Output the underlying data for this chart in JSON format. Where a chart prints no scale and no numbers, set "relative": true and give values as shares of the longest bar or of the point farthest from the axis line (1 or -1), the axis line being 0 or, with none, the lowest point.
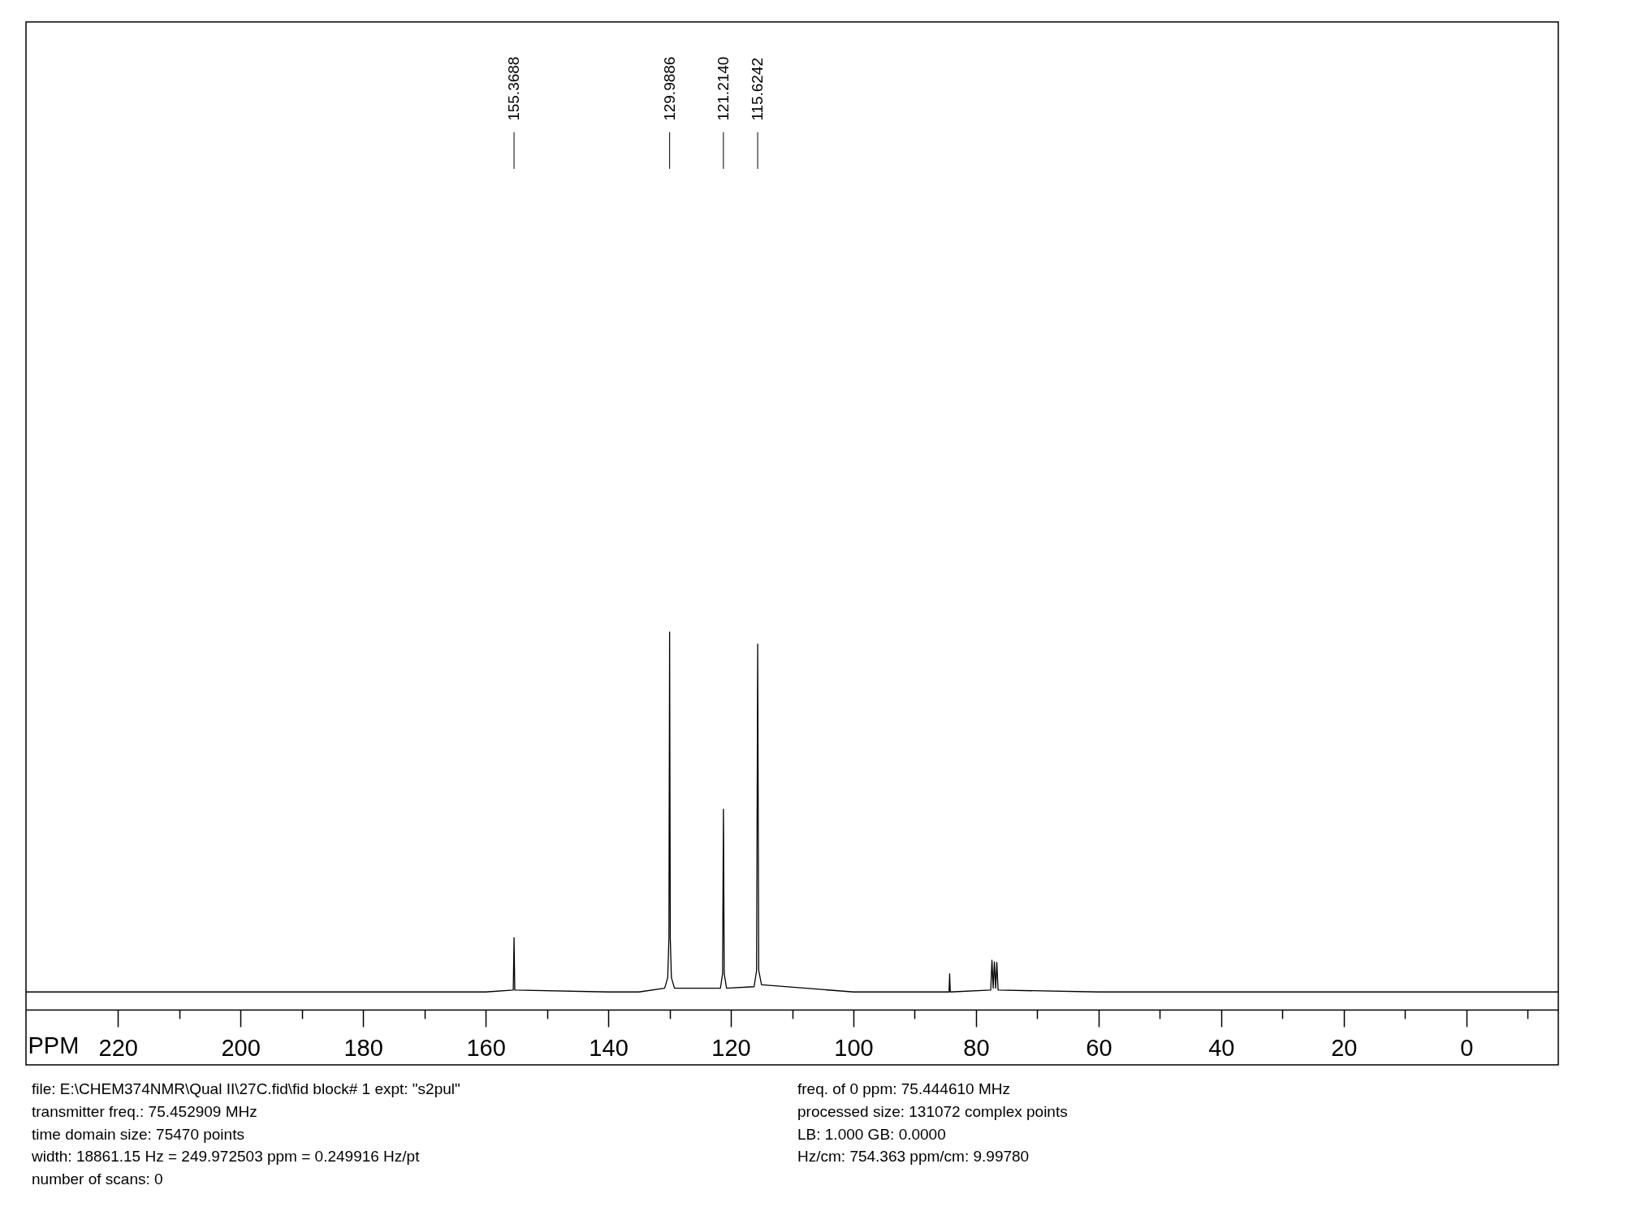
{
  "chart_data": {
    "type": "line",
    "relative": true,
    "xlabel": "PPM",
    "xlim": [
      235,
      -15
    ],
    "xticks": [
      220,
      {
        "value": 210,
        "label": null
      },
      200,
      {
        "value": 190,
        "label": null
      },
      180,
      {
        "value": 170,
        "label": null
      },
      160,
      {
        "value": 150,
        "label": null
      },
      140,
      {
        "value": 130,
        "label": null
      },
      120,
      {
        "value": 110,
        "label": null
      },
      100,
      {
        "value": 90,
        "label": null
      },
      80,
      {
        "value": 70,
        "label": null
      },
      60,
      {
        "value": 50,
        "label": null
      },
      40,
      {
        "value": 30,
        "label": null
      },
      20,
      {
        "value": 10,
        "label": null
      },
      0,
      {
        "value": -10,
        "label": null
      }
    ],
    "series": [
      {
        "color": "#000000",
        "x": [
          235,
          200,
          160,
          155.5,
          155.37,
          155.25,
          140,
          135,
          130.8,
          130.3,
          130.1,
          129.99,
          129.88,
          129.7,
          129.2,
          121.7,
          121.35,
          121.21,
          121.08,
          120.7,
          116.2,
          115.8,
          115.62,
          115.45,
          115.0,
          100,
          90,
          84.4,
          84.3,
          84.2,
          77.6,
          77.4,
          77.2,
          77.0,
          76.8,
          76.6,
          76.4,
          60,
          20,
          -15
        ],
        "values": [
          0.047,
          0.047,
          0.047,
          0.052,
          0.191,
          0.052,
          0.047,
          0.047,
          0.057,
          0.085,
          0.19,
          1,
          0.19,
          0.085,
          0.057,
          0.057,
          0.095,
          0.531,
          0.095,
          0.057,
          0.061,
          0.104,
          0.968,
          0.104,
          0.066,
          0.047,
          0.047,
          0.047,
          0.095,
          0.047,
          0.052,
          0.131,
          0.057,
          0.127,
          0.057,
          0.125,
          0.052,
          0.047,
          0.047,
          0.047
        ]
      }
    ],
    "annotations": [
      {
        "text": "155.3688",
        "x": 155.3688
      },
      {
        "text": "129.9886",
        "x": 129.9886
      },
      {
        "text": "121.2140",
        "x": 121.214
      },
      {
        "text": "115.6242",
        "x": 115.6242
      },
      "file: E:\\CHEM374NMR\\Qual II\\27C.fid\\fid  block# 1 expt: \"s2pul\"",
      "transmitter freq.: 75.452909 MHz",
      "time domain size: 75470 points",
      "width: 18861.15 Hz = 249.972503 ppm = 0.249916 Hz/pt",
      "number of scans: 0",
      "freq. of 0 ppm: 75.444610 MHz",
      "processed size: 131072 complex points",
      "LB:    1.000    GB: 0.0000",
      "Hz/cm:  754.363    ppm/cm:   9.99780"
    ]
  }
}
